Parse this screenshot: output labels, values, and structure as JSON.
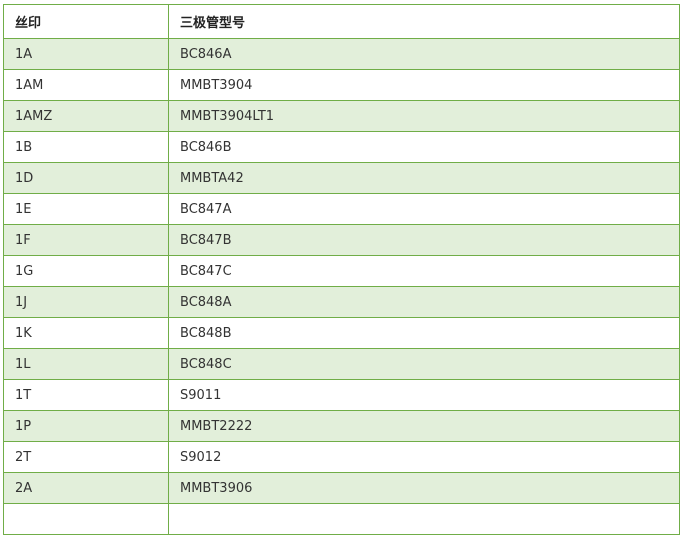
{
  "table": {
    "headers": [
      "丝印",
      "三极管型号"
    ],
    "rows": [
      [
        "1A",
        "BC846A"
      ],
      [
        "1AM",
        "MMBT3904"
      ],
      [
        "1AMZ",
        "MMBT3904LT1"
      ],
      [
        "1B",
        "BC846B"
      ],
      [
        "1D",
        "MMBTA42"
      ],
      [
        "1E",
        "BC847A"
      ],
      [
        "1F",
        "BC847B"
      ],
      [
        "1G",
        "BC847C"
      ],
      [
        "1J",
        "BC848A"
      ],
      [
        "1K",
        "BC848B"
      ],
      [
        "1L",
        "BC848C"
      ],
      [
        "1T",
        "S9011"
      ],
      [
        "1P",
        "MMBT2222"
      ],
      [
        "2T",
        "S9012"
      ],
      [
        "2A",
        "MMBT3906"
      ],
      [
        "",
        ""
      ]
    ]
  },
  "colors": {
    "border": "#70ad47",
    "alt_row": "#e2efda"
  }
}
